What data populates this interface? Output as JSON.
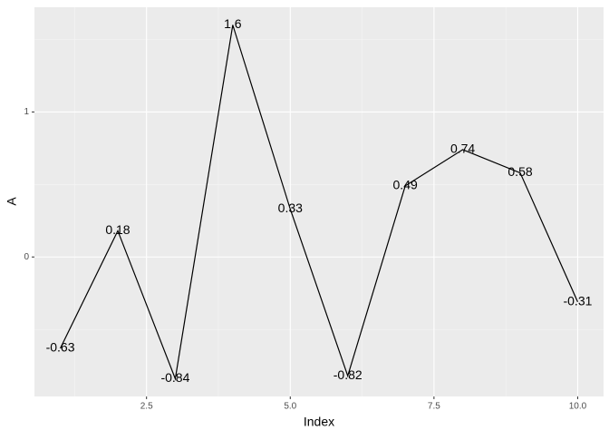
{
  "chart_data": {
    "type": "line",
    "x_label": "Index",
    "y_label": "A",
    "x": [
      1,
      2,
      3,
      4,
      5,
      6,
      7,
      8,
      9,
      10
    ],
    "values": [
      -0.63,
      0.18,
      -0.84,
      1.6,
      0.33,
      -0.82,
      0.49,
      0.74,
      0.58,
      -0.31
    ],
    "color": "#000000",
    "xlim": [
      0.55,
      10.45
    ],
    "xticks": [
      {
        "value": 2.5,
        "label": "2.5"
      },
      {
        "value": 5,
        "label": "5.0"
      },
      {
        "value": 7.5,
        "label": "7.5"
      },
      {
        "value": 10,
        "label": "10.0"
      }
    ],
    "ylim": [
      -0.962,
      1.722
    ],
    "yticks": [
      0,
      1
    ],
    "grid": true,
    "minor_grid": true
  }
}
